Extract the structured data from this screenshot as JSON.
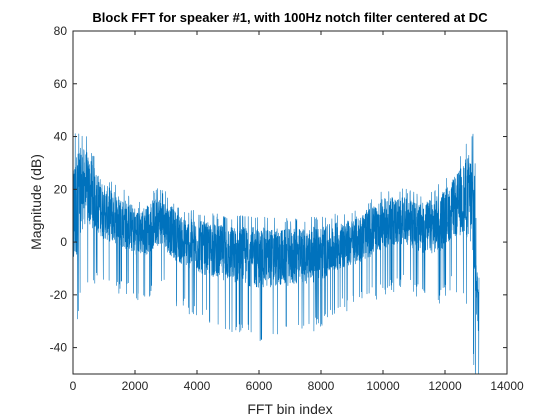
{
  "chart_data": {
    "type": "line",
    "title": "Block FFT for speaker #1, with 100Hz notch filter centered at DC",
    "xlabel": "FFT bin index",
    "ylabel": "Magnitude (dB)",
    "xlim": [
      0,
      14000
    ],
    "ylim": [
      -50,
      80
    ],
    "xticks": [
      0,
      2000,
      4000,
      6000,
      8000,
      10000,
      12000,
      14000
    ],
    "yticks": [
      -40,
      -20,
      0,
      20,
      40,
      60,
      80
    ],
    "xtick_labels": [
      "0",
      "2000",
      "4000",
      "6000",
      "8000",
      "10000",
      "12000",
      "14000"
    ],
    "ytick_labels": [
      "-40",
      "-20",
      "0",
      "20",
      "40",
      "60",
      "80"
    ],
    "grid": false,
    "series": [
      {
        "color": "#0072BD",
        "n_points": 13100,
        "x": [
          0,
          200,
          400,
          600,
          1000,
          1500,
          2000,
          2300,
          2600,
          2800,
          3200,
          3500,
          4000,
          5000,
          6000,
          7000,
          8000,
          8500,
          9000,
          9500,
          10000,
          10400,
          10800,
          11200,
          11800,
          12200,
          12500,
          12800,
          12950,
          13050
        ],
        "upper_envelope": [
          42,
          42,
          41,
          35,
          26,
          22,
          17,
          17,
          20,
          21,
          17,
          13,
          12,
          10,
          10,
          9,
          10,
          11,
          12,
          16,
          20,
          21,
          20,
          18,
          22,
          27,
          33,
          41,
          42,
          -8
        ],
        "lower_envelope": [
          -48,
          -18,
          -12,
          -10,
          -12,
          -14,
          -16,
          -17,
          -15,
          -12,
          -18,
          -20,
          -24,
          -28,
          -32,
          -30,
          -28,
          -22,
          -20,
          -18,
          -14,
          -13,
          -12,
          -16,
          -18,
          -12,
          -14,
          -20,
          -48,
          -48
        ],
        "min_value": -50,
        "max_value": 42
      }
    ]
  }
}
